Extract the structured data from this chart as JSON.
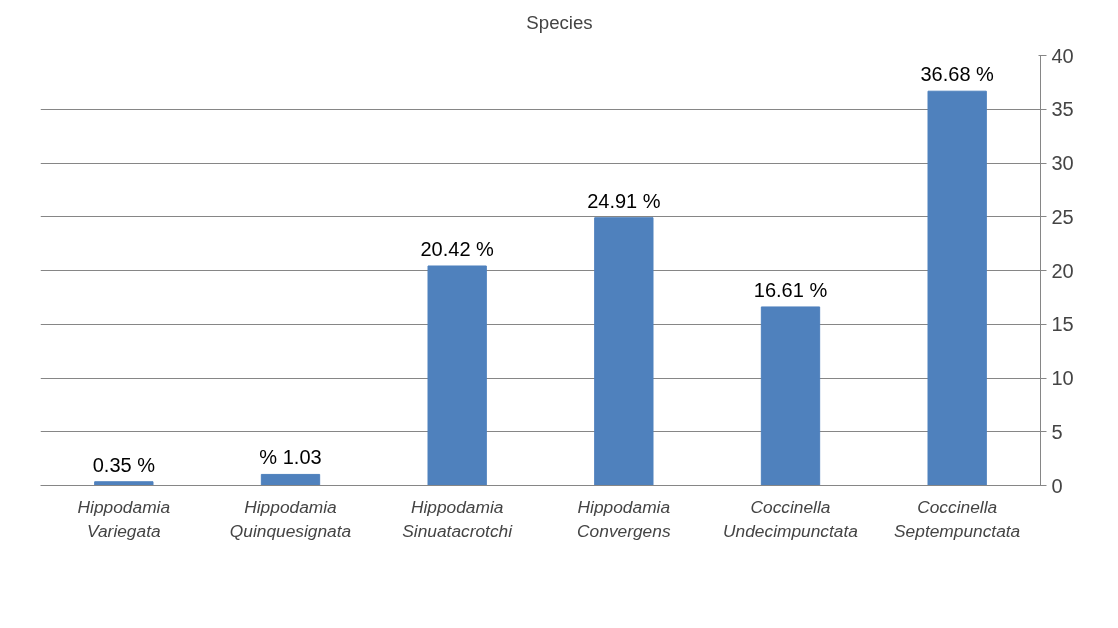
{
  "chart_data": {
    "type": "bar",
    "categories": [
      "Hippodamia\nVariegata",
      "Hippodamia\nQuinquesignata",
      "Hippodamia\nSinuatacrotchi",
      "Hippodamia\nConvergens",
      "Coccinella\nUndecimpunctata",
      "Coccinella\nSeptempunctata"
    ],
    "series": [
      {
        "name": "Species",
        "color": "#4f81bd",
        "values": [
          0.35,
          1.03,
          20.42,
          24.91,
          16.61,
          36.68
        ],
        "value_labels": [
          "0.35 %",
          "% 1.03",
          "20.42 %",
          "24.91 %",
          "16.61 %",
          "36.68 %"
        ]
      }
    ],
    "ylim": [
      0,
      40
    ],
    "yticks": [
      0,
      5,
      10,
      15,
      20,
      25,
      30,
      35,
      40
    ],
    "grid": "y",
    "legend": "top"
  }
}
